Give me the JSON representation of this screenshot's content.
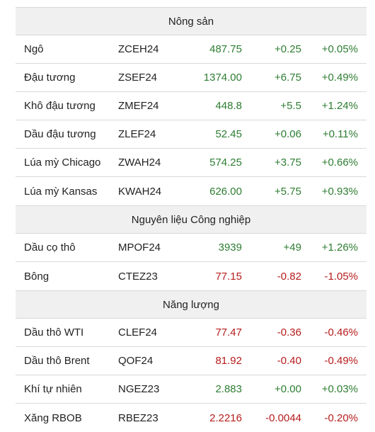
{
  "colors": {
    "up": "#2e7d32",
    "down": "#b71c1c",
    "header_bg": "#f0f0f0"
  },
  "sections": [
    {
      "title": "Nông sản",
      "rows": [
        {
          "name": "Ngô",
          "code": "ZCEH24",
          "price": "487.75",
          "change": "+0.25",
          "pct": "+0.05%",
          "dir": "up"
        },
        {
          "name": "Đậu tương",
          "code": "ZSEF24",
          "price": "1374.00",
          "change": "+6.75",
          "pct": "+0.49%",
          "dir": "up"
        },
        {
          "name": "Khô đậu tương",
          "code": "ZMEF24",
          "price": "448.8",
          "change": "+5.5",
          "pct": "+1.24%",
          "dir": "up"
        },
        {
          "name": "Dầu đậu tương",
          "code": "ZLEF24",
          "price": "52.45",
          "change": "+0.06",
          "pct": "+0.11%",
          "dir": "up"
        },
        {
          "name": "Lúa mỳ Chicago",
          "code": "ZWAH24",
          "price": "574.25",
          "change": "+3.75",
          "pct": "+0.66%",
          "dir": "up"
        },
        {
          "name": "Lúa mỳ Kansas",
          "code": "KWAH24",
          "price": "626.00",
          "change": "+5.75",
          "pct": "+0.93%",
          "dir": "up"
        }
      ]
    },
    {
      "title": "Nguyên liệu Công nghiệp",
      "rows": [
        {
          "name": "Dầu cọ thô",
          "code": "MPOF24",
          "price": "3939",
          "change": "+49",
          "pct": "+1.26%",
          "dir": "up"
        },
        {
          "name": "Bông",
          "code": "CTEZ23",
          "price": "77.15",
          "change": "-0.82",
          "pct": "-1.05%",
          "dir": "down"
        }
      ]
    },
    {
      "title": "Năng lượng",
      "rows": [
        {
          "name": "Dầu thô WTI",
          "code": "CLEF24",
          "price": "77.47",
          "change": "-0.36",
          "pct": "-0.46%",
          "dir": "down"
        },
        {
          "name": "Dầu thô Brent",
          "code": "QOF24",
          "price": "81.92",
          "change": "-0.40",
          "pct": "-0.49%",
          "dir": "down"
        },
        {
          "name": "Khí tự nhiên",
          "code": "NGEZ23",
          "price": "2.883",
          "change": "+0.00",
          "pct": "+0.03%",
          "dir": "up"
        },
        {
          "name": "Xăng RBOB",
          "code": "RBEZ23",
          "price": "2.2216",
          "change": "-0.0044",
          "pct": "-0.20%",
          "dir": "down"
        }
      ]
    }
  ]
}
